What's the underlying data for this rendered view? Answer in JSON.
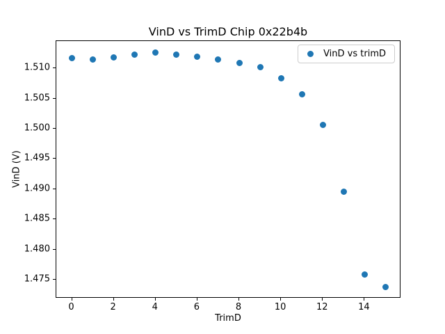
{
  "figure": {
    "background": "#ffffff"
  },
  "chart_data": {
    "type": "scatter",
    "title": "VinD vs TrimD Chip 0x22b4b",
    "xlabel": "TrimD",
    "ylabel": "VinD (V)",
    "grid": false,
    "legend": {
      "position": "upper right",
      "entries": [
        {
          "label": "VinD vs trimD",
          "marker": "circle",
          "color": "#1f77b4"
        }
      ]
    },
    "series": [
      {
        "name": "VinD vs trimD",
        "color": "#1f77b4",
        "x": [
          0,
          1,
          2,
          3,
          4,
          5,
          6,
          7,
          8,
          9,
          10,
          11,
          12,
          13,
          14,
          15
        ],
        "y": [
          1.5117,
          1.5115,
          1.5118,
          1.5123,
          1.5126,
          1.5123,
          1.5119,
          1.5114,
          1.5109,
          1.5102,
          1.5083,
          1.5057,
          1.5006,
          1.4896,
          1.4759,
          1.4738
        ]
      }
    ],
    "xlim": [
      -0.75,
      15.75
    ],
    "ylim": [
      1.4719,
      1.5145
    ],
    "xticks": [
      "0",
      "2",
      "4",
      "6",
      "8",
      "10",
      "12",
      "14"
    ],
    "yticks": [
      "1.475",
      "1.480",
      "1.485",
      "1.490",
      "1.495",
      "1.500",
      "1.505",
      "1.510"
    ]
  }
}
